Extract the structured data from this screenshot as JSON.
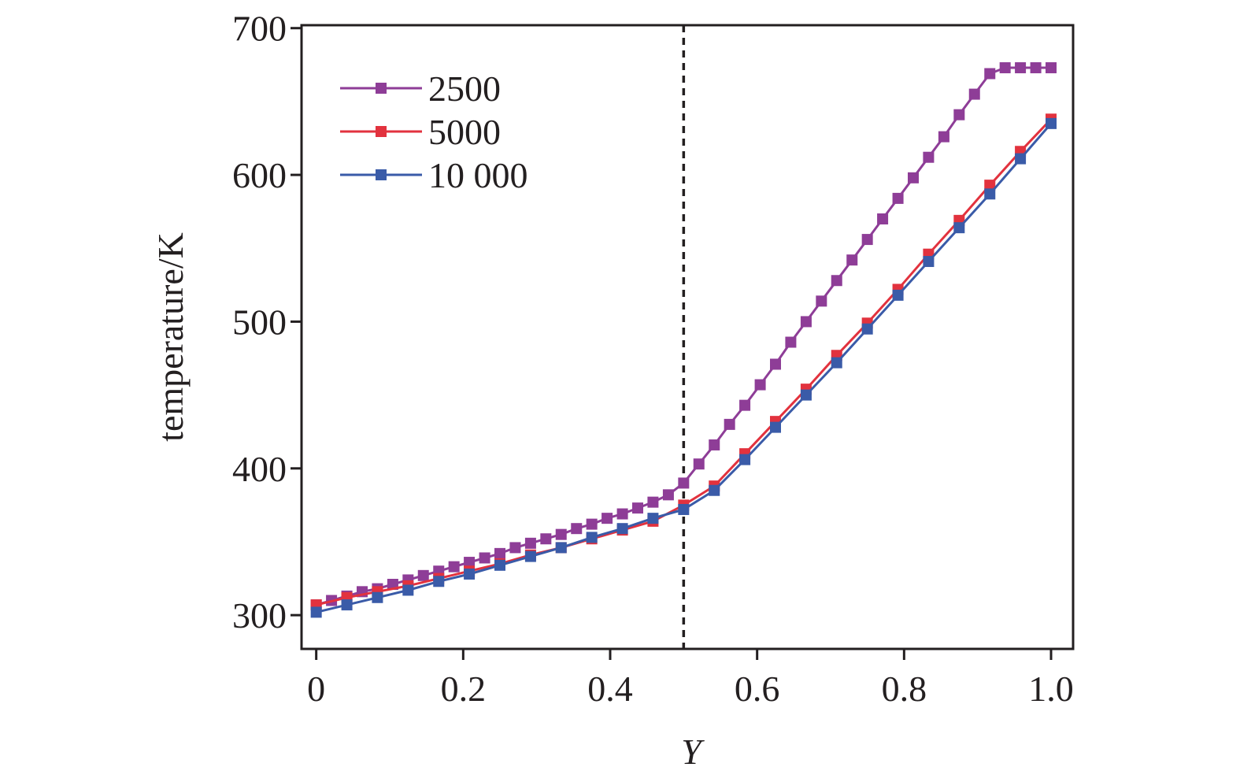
{
  "chart_data": {
    "type": "line",
    "title": "",
    "xlabel": "Y",
    "ylabel": "temperature/K",
    "xlim": [
      -0.02,
      1.03
    ],
    "ylim": [
      277,
      702
    ],
    "xticks": [
      0,
      0.2,
      0.4,
      0.6,
      0.8,
      1.0
    ],
    "xtick_labels": [
      "0",
      "0.2",
      "0.4",
      "0.6",
      "0.8",
      "1.0"
    ],
    "yticks": [
      300,
      400,
      500,
      600,
      700
    ],
    "ytick_labels": [
      "300",
      "400",
      "500",
      "600",
      "700"
    ],
    "grid": false,
    "legend_position": "top-left",
    "reference_line": {
      "x": 0.5,
      "style": "dashed"
    },
    "series": [
      {
        "name": "2500",
        "color": "#8e3d97",
        "x": [
          0,
          0.0208,
          0.0417,
          0.0625,
          0.0833,
          0.1042,
          0.125,
          0.1458,
          0.1667,
          0.1875,
          0.2083,
          0.2292,
          0.25,
          0.2708,
          0.2917,
          0.3125,
          0.3333,
          0.3542,
          0.375,
          0.3958,
          0.4167,
          0.4375,
          0.4583,
          0.4792,
          0.5,
          0.5208,
          0.5417,
          0.5625,
          0.5833,
          0.6042,
          0.625,
          0.6458,
          0.6667,
          0.6875,
          0.7083,
          0.7292,
          0.75,
          0.7708,
          0.7917,
          0.8125,
          0.8333,
          0.8542,
          0.875,
          0.8958,
          0.9167,
          0.9375,
          0.9583,
          0.9792,
          1.0
        ],
        "y": [
          307,
          310,
          313,
          316,
          318,
          321,
          324,
          327,
          330,
          333,
          336,
          339,
          342,
          346,
          349,
          352,
          355,
          359,
          362,
          366,
          369,
          373,
          377,
          382,
          390,
          403,
          416,
          430,
          443,
          457,
          471,
          486,
          500,
          514,
          528,
          542,
          556,
          570,
          584,
          598,
          612,
          626,
          641,
          655,
          669,
          673,
          673,
          673,
          673
        ]
      },
      {
        "name": "5000",
        "color": "#e2323e",
        "x": [
          0,
          0.0417,
          0.0833,
          0.125,
          0.1667,
          0.2083,
          0.25,
          0.2917,
          0.3333,
          0.375,
          0.4167,
          0.4583,
          0.5,
          0.5417,
          0.5833,
          0.625,
          0.6667,
          0.7083,
          0.75,
          0.7917,
          0.8333,
          0.875,
          0.9167,
          0.9583,
          1.0
        ],
        "y": [
          307,
          312,
          316,
          320,
          325,
          330,
          335,
          341,
          346,
          352,
          358,
          364,
          375,
          388,
          410,
          432,
          454,
          477,
          499,
          522,
          546,
          569,
          593,
          616,
          638
        ]
      },
      {
        "name": "10 000",
        "color": "#3a5ba8",
        "x": [
          0,
          0.0417,
          0.0833,
          0.125,
          0.1667,
          0.2083,
          0.25,
          0.2917,
          0.3333,
          0.375,
          0.4167,
          0.4583,
          0.5,
          0.5417,
          0.5833,
          0.625,
          0.6667,
          0.7083,
          0.75,
          0.7917,
          0.8333,
          0.875,
          0.9167,
          0.9583,
          1.0
        ],
        "y": [
          302,
          307,
          312,
          317,
          323,
          328,
          334,
          340,
          346,
          353,
          359,
          366,
          372,
          385,
          406,
          428,
          450,
          472,
          495,
          518,
          541,
          564,
          587,
          611,
          635
        ]
      }
    ]
  }
}
